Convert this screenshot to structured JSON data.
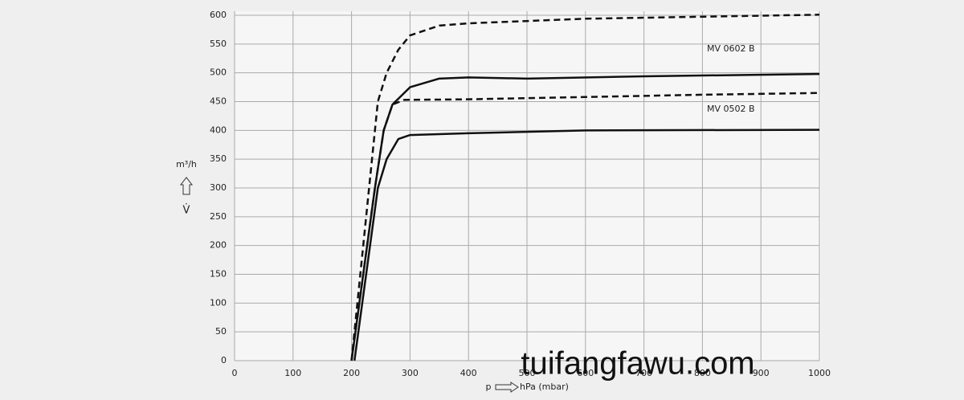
{
  "chart_data": {
    "type": "line",
    "y_label": "m³/h",
    "y_symbol": "V̇",
    "x_label_symbol": "p",
    "x_label": "hPa (mbar)",
    "annotations": [
      "MV 0602 B",
      "MV 0502 B"
    ],
    "watermark": "tuifangfawu.com",
    "xlim": [
      0,
      1000
    ],
    "ylim": [
      0,
      600
    ],
    "xticks": [
      0,
      100,
      200,
      300,
      400,
      500,
      600,
      700,
      800,
      900,
      1000
    ],
    "yticks": [
      0,
      50,
      100,
      150,
      200,
      250,
      300,
      350,
      400,
      450,
      500,
      550,
      600
    ],
    "grid": true,
    "series": [
      {
        "color": "#111111",
        "style": "dashed",
        "x": [
          200,
          215,
          230,
          245,
          260,
          280,
          300,
          350,
          400,
          600,
          1000
        ],
        "values": [
          0,
          150,
          300,
          450,
          500,
          540,
          565,
          582,
          586,
          594,
          601
        ]
      },
      {
        "name": "MV 0602 B",
        "color": "#111111",
        "style": "solid",
        "x": [
          200,
          220,
          240,
          255,
          270,
          300,
          350,
          400,
          500,
          700,
          1000
        ],
        "values": [
          0,
          150,
          300,
          400,
          445,
          475,
          490,
          492,
          490,
          494,
          498
        ]
      },
      {
        "color": "#111111",
        "style": "dashed",
        "x": [
          200,
          220,
          240,
          255,
          270,
          290,
          400,
          600,
          800,
          1000
        ],
        "values": [
          0,
          150,
          300,
          400,
          445,
          453,
          454,
          458,
          462,
          465
        ]
      },
      {
        "name": "MV 0502 B",
        "color": "#111111",
        "style": "solid",
        "x": [
          205,
          225,
          245,
          260,
          280,
          300,
          400,
          600,
          1000
        ],
        "values": [
          0,
          150,
          300,
          350,
          385,
          392,
          395,
          400,
          401
        ]
      }
    ]
  }
}
